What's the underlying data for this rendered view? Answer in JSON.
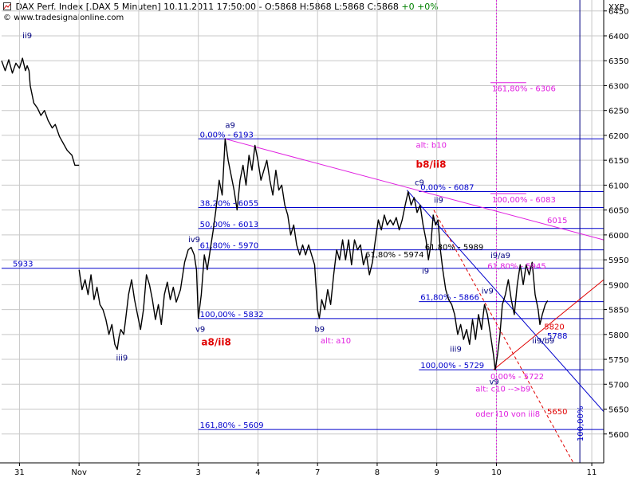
{
  "header": {
    "symbol": "DAX Perf. Index [.DAX  5 Minuten]",
    "datetime": "10.11.2011 17:50:00",
    "ohlc": "- O:5868 H:5868 L:5868 C:5868",
    "change": "+0 +0%",
    "website": "www.tradesignalonline.com",
    "axis_unit": "XXP"
  },
  "colors": {
    "price": "#000000",
    "grid": "#c8c8c8",
    "fib": "#0000cc",
    "magenta": "#e020e0",
    "red": "#e00000",
    "darkblue": "#000080",
    "background": "#ffffff"
  },
  "chart_data": {
    "type": "line",
    "title": "DAX Perf. Index [.DAX 5 Minuten]",
    "xlabel": "",
    "ylabel": "",
    "ylim": [
      5542,
      6472
    ],
    "xlim": [
      0,
      101
    ],
    "y_ticks": [
      5600,
      5650,
      5700,
      5750,
      5800,
      5850,
      5900,
      5950,
      6000,
      6050,
      6100,
      6150,
      6200,
      6250,
      6300,
      6350,
      6400,
      6450
    ],
    "x_ticks": [
      {
        "label": "31",
        "x": 3
      },
      {
        "label": "Nov",
        "x": 13
      },
      {
        "label": "2",
        "x": 23
      },
      {
        "label": "3",
        "x": 33
      },
      {
        "label": "4",
        "x": 43
      },
      {
        "label": "7",
        "x": 53
      },
      {
        "label": "8",
        "x": 63
      },
      {
        "label": "9",
        "x": 73
      },
      {
        "label": "10",
        "x": 83
      },
      {
        "label": "11",
        "x": 99
      }
    ],
    "series": [
      {
        "name": "DAX",
        "segments": [
          [
            [
              0,
              6350
            ],
            [
              0.6,
              6330
            ],
            [
              1.2,
              6352
            ],
            [
              1.8,
              6325
            ],
            [
              2.4,
              6345
            ],
            [
              3,
              6335
            ],
            [
              3.5,
              6355
            ],
            [
              4,
              6330
            ],
            [
              4.3,
              6340
            ],
            [
              4.6,
              6330
            ],
            [
              4.8,
              6300
            ],
            [
              5.4,
              6265
            ],
            [
              6,
              6255
            ],
            [
              6.6,
              6240
            ],
            [
              7.2,
              6250
            ],
            [
              7.8,
              6230
            ],
            [
              8.5,
              6215
            ],
            [
              9,
              6222
            ],
            [
              9.7,
              6198
            ],
            [
              10.3,
              6185
            ],
            [
              11,
              6170
            ],
            [
              11.8,
              6160
            ],
            [
              12.3,
              6140
            ],
            [
              13,
              6140
            ]
          ],
          [
            [
              13,
              5930
            ],
            [
              13.5,
              5890
            ],
            [
              14,
              5910
            ],
            [
              14.5,
              5880
            ],
            [
              15,
              5920
            ],
            [
              15.5,
              5870
            ],
            [
              16,
              5895
            ],
            [
              16.5,
              5860
            ],
            [
              17,
              5850
            ],
            [
              17.5,
              5830
            ],
            [
              18,
              5800
            ],
            [
              18.5,
              5820
            ],
            [
              19,
              5780
            ],
            [
              19.4,
              5770
            ],
            [
              19.7,
              5795
            ],
            [
              20,
              5810
            ],
            [
              20.5,
              5800
            ],
            [
              20.8,
              5830
            ],
            [
              21.3,
              5880
            ],
            [
              21.8,
              5910
            ],
            [
              22.3,
              5870
            ],
            [
              22.8,
              5840
            ],
            [
              23.3,
              5810
            ],
            [
              23.8,
              5850
            ],
            [
              24.3,
              5920
            ],
            [
              24.8,
              5900
            ],
            [
              25.3,
              5870
            ],
            [
              25.8,
              5830
            ],
            [
              26.3,
              5860
            ],
            [
              26.8,
              5820
            ],
            [
              27.3,
              5880
            ],
            [
              27.8,
              5905
            ],
            [
              28.3,
              5870
            ],
            [
              28.8,
              5895
            ],
            [
              29.3,
              5865
            ],
            [
              30,
              5890
            ],
            [
              30.7,
              5945
            ],
            [
              31.3,
              5970
            ],
            [
              31.8,
              5975
            ],
            [
              32.3,
              5960
            ],
            [
              32.7,
              5930
            ],
            [
              33,
              5832
            ]
          ],
          [
            [
              33,
              5832
            ],
            [
              33.5,
              5880
            ],
            [
              34,
              5960
            ],
            [
              34.5,
              5930
            ],
            [
              35,
              5970
            ],
            [
              35.5,
              6010
            ],
            [
              36,
              6055
            ],
            [
              36.5,
              6110
            ],
            [
              37,
              6080
            ],
            [
              37.5,
              6193
            ],
            [
              38,
              6150
            ],
            [
              38.5,
              6120
            ],
            [
              39,
              6090
            ],
            [
              39.5,
              6050
            ],
            [
              40,
              6110
            ],
            [
              40.5,
              6140
            ],
            [
              41,
              6100
            ],
            [
              41.5,
              6160
            ],
            [
              42,
              6130
            ],
            [
              42.5,
              6180
            ],
            [
              43,
              6150
            ],
            [
              43.5,
              6110
            ],
            [
              44,
              6130
            ],
            [
              44.5,
              6150
            ],
            [
              45,
              6110
            ],
            [
              45.5,
              6080
            ],
            [
              46,
              6130
            ],
            [
              46.5,
              6090
            ],
            [
              47,
              6100
            ],
            [
              47.5,
              6060
            ],
            [
              48,
              6040
            ],
            [
              48.5,
              6000
            ],
            [
              49,
              6020
            ],
            [
              49.5,
              5980
            ],
            [
              50,
              5960
            ],
            [
              50.5,
              5980
            ],
            [
              51,
              5960
            ],
            [
              51.5,
              5980
            ],
            [
              52,
              5960
            ],
            [
              52.5,
              5940
            ],
            [
              53,
              5850
            ],
            [
              53.3,
              5832
            ],
            [
              53.7,
              5870
            ],
            [
              54.2,
              5850
            ],
            [
              54.7,
              5890
            ],
            [
              55.2,
              5860
            ],
            [
              55.7,
              5920
            ],
            [
              56.2,
              5970
            ],
            [
              56.7,
              5950
            ],
            [
              57.2,
              5990
            ],
            [
              57.7,
              5950
            ],
            [
              58.2,
              5990
            ],
            [
              58.7,
              5940
            ],
            [
              59.2,
              5990
            ],
            [
              59.7,
              5970
            ],
            [
              60.2,
              5980
            ],
            [
              60.7,
              5940
            ],
            [
              61.2,
              5960
            ],
            [
              61.7,
              5920
            ],
            [
              62.2,
              5945
            ],
            [
              62.7,
              5990
            ],
            [
              63.2,
              6030
            ],
            [
              63.7,
              6010
            ],
            [
              64.2,
              6040
            ],
            [
              64.7,
              6020
            ],
            [
              65.2,
              6030
            ],
            [
              65.7,
              6020
            ],
            [
              66.2,
              6035
            ],
            [
              66.7,
              6010
            ],
            [
              67.2,
              6030
            ],
            [
              67.7,
              6060
            ],
            [
              68.2,
              6087
            ],
            [
              68.7,
              6060
            ],
            [
              69.2,
              6075
            ],
            [
              69.7,
              6045
            ],
            [
              70.2,
              6060
            ],
            [
              70.7,
              6020
            ],
            [
              71.2,
              5990
            ],
            [
              71.6,
              5950
            ],
            [
              72,
              5980
            ],
            [
              72.4,
              6040
            ],
            [
              72.8,
              6020
            ],
            [
              73.2,
              6030
            ],
            [
              73.6,
              5970
            ],
            [
              74,
              5930
            ],
            [
              74.5,
              5890
            ],
            [
              75,
              5870
            ],
            [
              75.5,
              5860
            ],
            [
              76,
              5840
            ],
            [
              76.5,
              5800
            ],
            [
              77,
              5820
            ],
            [
              77.5,
              5790
            ],
            [
              78,
              5810
            ],
            [
              78.5,
              5780
            ],
            [
              79,
              5830
            ],
            [
              79.5,
              5790
            ],
            [
              80,
              5840
            ],
            [
              80.5,
              5810
            ],
            [
              81,
              5860
            ],
            [
              81.5,
              5840
            ],
            [
              82,
              5800
            ],
            [
              82.5,
              5760
            ],
            [
              82.8,
              5729
            ],
            [
              83.2,
              5760
            ],
            [
              83.6,
              5800
            ],
            [
              84,
              5860
            ],
            [
              84.5,
              5880
            ],
            [
              85,
              5910
            ],
            [
              85.5,
              5870
            ],
            [
              86,
              5840
            ],
            [
              86.5,
              5900
            ],
            [
              87,
              5940
            ],
            [
              87.5,
              5900
            ],
            [
              88,
              5940
            ],
            [
              88.5,
              5920
            ],
            [
              89,
              5945
            ],
            [
              89.5,
              5880
            ],
            [
              90,
              5850
            ],
            [
              90.3,
              5820
            ],
            [
              90.7,
              5840
            ],
            [
              91.2,
              5860
            ],
            [
              91.6,
              5868
            ]
          ]
        ]
      }
    ],
    "horizontal_lines": [
      {
        "y": 6193,
        "color": "fib",
        "label": "0,00% - 6193",
        "x_start": 33
      },
      {
        "y": 6087,
        "color": "fib",
        "label": "0,00% - 6087",
        "x_start": 70
      },
      {
        "y": 6055,
        "color": "fib",
        "label": "38,20% - 6055",
        "x_start": 33
      },
      {
        "y": 6013,
        "color": "fib",
        "label": "50,00% - 6013",
        "x_start": 33
      },
      {
        "y": 5970,
        "color": "fib",
        "label": "61,80% - 5970",
        "x_start": 33
      },
      {
        "y": 5933,
        "color": "fib",
        "label": "5933",
        "x_start": 0
      },
      {
        "y": 5866,
        "color": "fib",
        "label": "61,80% - 5866",
        "x_start": 70
      },
      {
        "y": 5832,
        "color": "fib",
        "label": "100,00% - 5832",
        "x_start": 33
      },
      {
        "y": 5729,
        "color": "fib",
        "label": "100,00% - 5729",
        "x_start": 70
      },
      {
        "y": 5609,
        "color": "fib",
        "label": "161,80% - 5609",
        "x_start": 33
      }
    ],
    "short_lines": [
      {
        "y": 6306,
        "x_start": 82,
        "x_end": 88,
        "color": "magenta",
        "label": "161,80% - 6306"
      },
      {
        "y": 6083,
        "x_start": 82,
        "x_end": 88,
        "color": "magenta",
        "label": "100,00% - 6083"
      }
    ],
    "trendlines": [
      {
        "x1": 37.5,
        "y1": 6193,
        "x2": 101,
        "y2": 5990,
        "color": "magenta",
        "dash": false
      },
      {
        "x1": 68,
        "y1": 6090,
        "x2": 101,
        "y2": 5645,
        "color": "fib",
        "dash": false
      },
      {
        "x1": 72.5,
        "y1": 6050,
        "x2": 96,
        "y2": 5540,
        "color": "red",
        "dash": true
      },
      {
        "x1": 82.5,
        "y1": 5729,
        "x2": 101,
        "y2": 5910,
        "color": "red",
        "dash": false
      }
    ],
    "vertical_lines": [
      {
        "x": 83,
        "color": "magenta",
        "dash": true
      },
      {
        "x": 97,
        "color": "darkblue",
        "dash": false
      }
    ],
    "annotations": [
      {
        "text": "ii9",
        "x": 3.5,
        "y": 6395,
        "color": "darkblue"
      },
      {
        "text": "a9",
        "x": 37.5,
        "y": 6215,
        "color": "darkblue"
      },
      {
        "text": "iv9",
        "x": 31.3,
        "y": 5985,
        "color": "darkblue"
      },
      {
        "text": "v9",
        "x": 32.5,
        "y": 5805,
        "color": "darkblue"
      },
      {
        "text": "a8/ii8",
        "x": 33.5,
        "y": 5778,
        "color": "red",
        "bold": true
      },
      {
        "text": "iii9",
        "x": 19.2,
        "y": 5748,
        "color": "darkblue"
      },
      {
        "text": "alt: b10",
        "x": 69.5,
        "y": 6175,
        "color": "magenta"
      },
      {
        "text": "b8/ii8",
        "x": 69.5,
        "y": 6135,
        "color": "red",
        "bold": true
      },
      {
        "text": "c9",
        "x": 69.3,
        "y": 6100,
        "color": "darkblue"
      },
      {
        "text": "ii9",
        "x": 72.5,
        "y": 6065,
        "color": "darkblue"
      },
      {
        "text": "b9",
        "x": 52.5,
        "y": 5805,
        "color": "darkblue"
      },
      {
        "text": "alt: a10",
        "x": 53.5,
        "y": 5782,
        "color": "magenta"
      },
      {
        "text": "61,80% - 5974",
        "x": 61,
        "y": 5955,
        "color": "black"
      },
      {
        "text": "61,80% - 5989",
        "x": 71,
        "y": 5970,
        "color": "black"
      },
      {
        "text": "i9",
        "x": 70.5,
        "y": 5922,
        "color": "darkblue"
      },
      {
        "text": "i9/a9",
        "x": 82,
        "y": 5953,
        "color": "darkblue"
      },
      {
        "text": "61,80% - 5945",
        "x": 81.5,
        "y": 5932,
        "color": "magenta"
      },
      {
        "text": "iv9",
        "x": 80.5,
        "y": 5882,
        "color": "darkblue"
      },
      {
        "text": "iii9",
        "x": 75.2,
        "y": 5765,
        "color": "darkblue"
      },
      {
        "text": "v9",
        "x": 81.8,
        "y": 5700,
        "color": "darkblue"
      },
      {
        "text": "0,00% - 5722",
        "x": 82,
        "y": 5710,
        "color": "magenta"
      },
      {
        "text": "alt: c10 -->b9",
        "x": 79.5,
        "y": 5685,
        "color": "magenta"
      },
      {
        "text": "oder i10 von iii8",
        "x": 79.5,
        "y": 5635,
        "color": "magenta"
      },
      {
        "text": "5820",
        "x": 91,
        "y": 5810,
        "color": "red"
      },
      {
        "text": "5788",
        "x": 91.5,
        "y": 5792,
        "color": "fib"
      },
      {
        "text": "ii9/b9",
        "x": 89,
        "y": 5782,
        "color": "darkblue"
      },
      {
        "text": "5650",
        "x": 91.5,
        "y": 5640,
        "color": "red"
      },
      {
        "text": "6015",
        "x": 91.5,
        "y": 6024,
        "color": "magenta"
      }
    ],
    "vertical_labels": [
      {
        "text": "100,00%",
        "x": 97.5,
        "y": 5585,
        "color": "fib"
      }
    ]
  }
}
